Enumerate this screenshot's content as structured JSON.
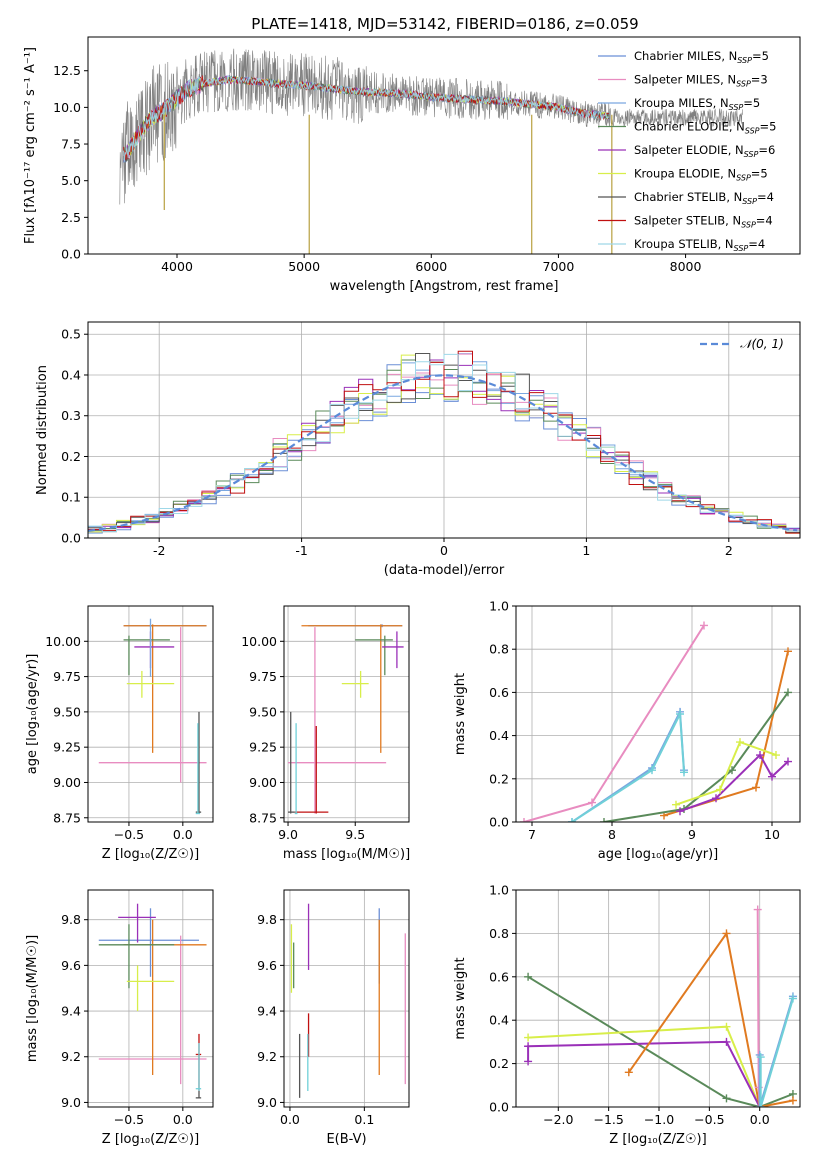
{
  "figure_title": "PLATE=1418, MJD=53142, FIBERID=0186, z=0.059",
  "colors": {
    "Chabrier MILES": "#6b8fd6",
    "Salpeter MILES": "#e88cc0",
    "Kroupa MILES": "#7aa7e0",
    "Chabrier ELODIE": "#5a8a5a",
    "Salpeter ELODIE": "#9a30b8",
    "Kroupa ELODIE": "#d8ee4a",
    "Chabrier STELIB": "#555555",
    "Salpeter STELIB": "#c01010",
    "Kroupa STELIB": "#9fd8e8",
    "data": "#808080",
    "orange": "#e07a20",
    "cyan": "#70d0d8"
  },
  "chart_data": [
    {
      "id": "spectrum",
      "type": "line",
      "title": "PLATE=1418, MJD=53142, FIBERID=0186, z=0.059",
      "xlabel": "wavelength [Angstrom, rest frame]",
      "ylabel": "Flux [f$_\\lambda$10$^{-17}$ erg cm$^{-2}$ s$^{-1}$ A$^{-1}$]",
      "ylabel_display": "Flux [fλ10⁻¹⁷ erg cm⁻² s⁻¹ A⁻¹]",
      "xlim": [
        3300,
        8900
      ],
      "ylim": [
        0,
        14.8
      ],
      "xticks": [
        4000,
        5000,
        6000,
        7000,
        8000
      ],
      "yticks": [
        0.0,
        2.5,
        5.0,
        7.5,
        10.0,
        12.5
      ],
      "grid": false,
      "legend_position": "top-right",
      "legend": [
        {
          "name": "Chabrier MILES",
          "nssp": "5"
        },
        {
          "name": "Salpeter MILES",
          "nssp": "3"
        },
        {
          "name": "Kroupa MILES",
          "nssp": "5"
        },
        {
          "name": "Chabrier ELODIE",
          "nssp": "5"
        },
        {
          "name": "Salpeter ELODIE",
          "nssp": "6"
        },
        {
          "name": "Kroupa ELODIE",
          "nssp": "5"
        },
        {
          "name": "Chabrier STELIB",
          "nssp": "4"
        },
        {
          "name": "Salpeter STELIB",
          "nssp": "4"
        },
        {
          "name": "Kroupa STELIB",
          "nssp": "4"
        }
      ],
      "continuum_model": [
        [
          3600,
          6.8
        ],
        [
          3700,
          8.2
        ],
        [
          3800,
          9.3
        ],
        [
          3900,
          9.8
        ],
        [
          4000,
          10.6
        ],
        [
          4100,
          11.3
        ],
        [
          4200,
          11.6
        ],
        [
          4400,
          11.9
        ],
        [
          4600,
          11.8
        ],
        [
          4800,
          11.6
        ],
        [
          5000,
          11.5
        ],
        [
          5200,
          11.3
        ],
        [
          5400,
          11.1
        ],
        [
          5600,
          11.0
        ],
        [
          5800,
          10.9
        ],
        [
          6000,
          10.7
        ],
        [
          6200,
          10.6
        ],
        [
          6400,
          10.5
        ],
        [
          6600,
          10.4
        ],
        [
          6800,
          10.2
        ],
        [
          7000,
          10.0
        ],
        [
          7200,
          9.6
        ],
        [
          7400,
          9.4
        ]
      ],
      "data_extent": [
        3550,
        8450
      ]
    },
    {
      "id": "residuals",
      "type": "line",
      "xlabel": "(data-model)/error",
      "ylabel": "Normed distribution",
      "xlim": [
        -2.5,
        2.5
      ],
      "ylim": [
        0,
        0.53
      ],
      "xticks": [
        -2,
        -1,
        0,
        1,
        2
      ],
      "yticks": [
        0.0,
        0.1,
        0.2,
        0.3,
        0.4,
        0.5
      ],
      "grid": true,
      "legend_position": "top-right",
      "legend": [
        "$\\mathcal{N}(0,1)$"
      ],
      "legend_display": "𝒩(0, 1)",
      "gaussian": {
        "mean": 0,
        "sigma": 1
      },
      "bin_width": 0.1
    },
    {
      "id": "age_vs_Z",
      "type": "scatter",
      "xlabel": "Z [log$_{10}$($Z/Z_\\odot$)]",
      "xlabel_display": "Z [log₁₀(Z/Z☉)]",
      "ylabel": "age  [log$_{10}$($age/yr$)]",
      "ylabel_display": "age  [log₁₀(age/yr)]",
      "xlim": [
        -0.88,
        0.28
      ],
      "ylim": [
        8.72,
        10.25
      ],
      "xticks": [
        -0.5,
        0.0
      ],
      "yticks": [
        8.75,
        9.0,
        9.25,
        9.5,
        9.75,
        10.0
      ],
      "grid": true,
      "points": [
        {
          "c": "Chabrier MILES",
          "x": -0.3,
          "y": 10.11,
          "xe": [
            -0.55,
            0.22
          ],
          "ye": [
            10.1,
            10.12
          ]
        },
        {
          "c": "Salpeter MILES",
          "x": -0.02,
          "y": 9.14,
          "xe": [
            -0.78,
            0.22
          ],
          "ye": [
            9.0,
            10.1
          ]
        },
        {
          "c": "orange",
          "x": -0.28,
          "y": 10.11,
          "xe": [
            -0.55,
            0.22
          ],
          "ye": [
            9.21,
            10.12
          ]
        },
        {
          "c": "Chabrier ELODIE",
          "x": -0.5,
          "y": 10.01,
          "xe": [
            -0.55,
            -0.12
          ],
          "ye": [
            9.76,
            10.04
          ]
        },
        {
          "c": "Salpeter ELODIE",
          "x": -0.3,
          "y": 9.96,
          "xe": [
            -0.45,
            -0.08
          ],
          "ye": [
            9.81,
            10.07
          ]
        },
        {
          "c": "Kroupa ELODIE",
          "x": -0.38,
          "y": 9.7,
          "xe": [
            -0.52,
            -0.08
          ],
          "ye": [
            9.6,
            9.79
          ]
        },
        {
          "c": "Kroupa MILES",
          "x": -0.3,
          "y": 10.0,
          "xe": [
            -0.3,
            -0.3
          ],
          "ye": [
            9.75,
            10.16
          ]
        },
        {
          "c": "Chabrier STELIB",
          "x": 0.15,
          "y": 8.79,
          "xe": [
            0.12,
            0.17
          ],
          "ye": [
            8.78,
            9.5
          ]
        },
        {
          "c": "cyan",
          "x": 0.14,
          "y": 8.78,
          "xe": [
            0.12,
            0.16
          ],
          "ye": [
            8.78,
            9.42
          ]
        }
      ]
    },
    {
      "id": "age_vs_mass",
      "type": "scatter",
      "xlabel": "mass [log$_{10}$($M/M_\\odot$)]",
      "xlabel_display": "mass [log₁₀(M/M☉)]",
      "ylabel": "",
      "xlim": [
        8.97,
        9.9
      ],
      "ylim": [
        8.72,
        10.25
      ],
      "xticks": [
        9.0,
        9.5
      ],
      "yticks": [
        8.75,
        9.0,
        9.25,
        9.5,
        9.75,
        10.0
      ],
      "grid": true,
      "points": [
        {
          "c": "Chabrier MILES",
          "x": 9.7,
          "y": 10.11,
          "xe": [
            9.15,
            9.85
          ],
          "ye": [
            10.1,
            10.12
          ]
        },
        {
          "c": "Salpeter MILES",
          "x": 9.2,
          "y": 9.14,
          "xe": [
            9.0,
            9.73
          ],
          "ye": [
            8.78,
            10.1
          ]
        },
        {
          "c": "orange",
          "x": 9.69,
          "y": 10.11,
          "xe": [
            9.1,
            9.85
          ],
          "ye": [
            9.21,
            10.12
          ]
        },
        {
          "c": "Chabrier ELODIE",
          "x": 9.72,
          "y": 10.01,
          "xe": [
            9.5,
            9.78
          ],
          "ye": [
            9.76,
            10.04
          ]
        },
        {
          "c": "Salpeter ELODIE",
          "x": 9.81,
          "y": 9.96,
          "xe": [
            9.7,
            9.86
          ],
          "ye": [
            9.81,
            10.07
          ]
        },
        {
          "c": "Kroupa ELODIE",
          "x": 9.54,
          "y": 9.7,
          "xe": [
            9.4,
            9.6
          ],
          "ye": [
            9.6,
            9.79
          ]
        },
        {
          "c": "Chabrier STELIB",
          "x": 9.02,
          "y": 8.79,
          "xe": [
            9.0,
            9.05
          ],
          "ye": [
            8.78,
            9.5
          ]
        },
        {
          "c": "Salpeter STELIB",
          "x": 9.21,
          "y": 8.79,
          "xe": [
            9.05,
            9.3
          ],
          "ye": [
            8.78,
            9.4
          ]
        },
        {
          "c": "cyan",
          "x": 9.06,
          "y": 8.78,
          "xe": [
            9.05,
            9.07
          ],
          "ye": [
            8.78,
            9.42
          ]
        }
      ]
    },
    {
      "id": "weight_vs_age",
      "type": "line",
      "xlabel": "age  [log$_{10}$($age/yr$)]",
      "xlabel_display": "age  [log₁₀(age/yr)]",
      "ylabel": "mass weight",
      "xlim": [
        6.8,
        10.35
      ],
      "ylim": [
        0,
        1.0
      ],
      "xticks": [
        7,
        8,
        9,
        10
      ],
      "yticks": [
        0.0,
        0.2,
        0.4,
        0.6,
        0.8,
        1.0
      ],
      "grid": true,
      "series": [
        {
          "c": "Salpeter MILES",
          "x": [
            6.9,
            7.75,
            9.15
          ],
          "y": [
            0.0,
            0.09,
            0.91
          ]
        },
        {
          "c": "Kroupa MILES",
          "x": [
            7.5,
            8.5,
            8.85,
            8.9
          ],
          "y": [
            0.0,
            0.25,
            0.51,
            0.24
          ]
        },
        {
          "c": "cyan",
          "x": [
            7.5,
            8.5,
            8.85,
            8.9
          ],
          "y": [
            0.0,
            0.24,
            0.5,
            0.23
          ]
        },
        {
          "c": "orange",
          "x": [
            8.65,
            9.8,
            10.2
          ],
          "y": [
            0.03,
            0.16,
            0.79
          ]
        },
        {
          "c": "Chabrier ELODIE",
          "x": [
            7.9,
            8.9,
            9.5,
            10.2
          ],
          "y": [
            0.0,
            0.06,
            0.24,
            0.6
          ]
        },
        {
          "c": "Salpeter ELODIE",
          "x": [
            8.85,
            9.3,
            9.85,
            10.0,
            10.2
          ],
          "y": [
            0.05,
            0.11,
            0.31,
            0.21,
            0.28
          ]
        },
        {
          "c": "Kroupa ELODIE",
          "x": [
            8.8,
            9.35,
            9.6,
            10.05
          ],
          "y": [
            0.08,
            0.15,
            0.37,
            0.31
          ]
        }
      ]
    },
    {
      "id": "mass_vs_Z",
      "type": "scatter",
      "xlabel": "Z [log$_{10}$($Z/Z_\\odot$)]",
      "xlabel_display": "Z [log₁₀(Z/Z☉)]",
      "ylabel": "mass [log$_{10}$($M/M_\\odot$)]",
      "ylabel_display": "mass [log₁₀(M/M☉)]",
      "xlim": [
        -0.88,
        0.28
      ],
      "ylim": [
        8.98,
        9.93
      ],
      "xticks": [
        -0.5,
        0.0
      ],
      "yticks": [
        9.0,
        9.2,
        9.4,
        9.6,
        9.8
      ],
      "grid": true,
      "points": [
        {
          "c": "Chabrier MILES",
          "x": -0.3,
          "y": 9.71,
          "xe": [
            -0.78,
            0.15
          ],
          "ye": [
            9.55,
            9.85
          ]
        },
        {
          "c": "Salpeter MILES",
          "x": -0.02,
          "y": 9.19,
          "xe": [
            -0.78,
            0.22
          ],
          "ye": [
            9.08,
            9.73
          ]
        },
        {
          "c": "orange",
          "x": -0.28,
          "y": 9.69,
          "xe": [
            -0.55,
            0.22
          ],
          "ye": [
            9.12,
            9.8
          ]
        },
        {
          "c": "Chabrier ELODIE",
          "x": -0.5,
          "y": 9.69,
          "xe": [
            -0.78,
            -0.08
          ],
          "ye": [
            9.5,
            9.78
          ]
        },
        {
          "c": "Salpeter ELODIE",
          "x": -0.42,
          "y": 9.81,
          "xe": [
            -0.6,
            -0.25
          ],
          "ye": [
            9.7,
            9.87
          ]
        },
        {
          "c": "Kroupa ELODIE",
          "x": -0.42,
          "y": 9.53,
          "xe": [
            -0.52,
            -0.08
          ],
          "ye": [
            9.4,
            9.6
          ]
        },
        {
          "c": "Chabrier STELIB",
          "x": 0.15,
          "y": 9.02,
          "xe": [
            0.12,
            0.17
          ],
          "ye": [
            9.02,
            9.05
          ]
        },
        {
          "c": "Salpeter STELIB",
          "x": 0.15,
          "y": 9.21,
          "xe": [
            0.12,
            0.17
          ],
          "ye": [
            9.05,
            9.3
          ]
        },
        {
          "c": "cyan",
          "x": 0.15,
          "y": 9.06,
          "xe": [
            0.12,
            0.17
          ],
          "ye": [
            9.05,
            9.26
          ]
        }
      ]
    },
    {
      "id": "mass_vs_EBV",
      "type": "scatter",
      "xlabel": "E(B-V)",
      "ylabel": "",
      "xlim": [
        -0.008,
        0.16
      ],
      "ylim": [
        8.98,
        9.93
      ],
      "xticks": [
        0.0,
        0.1
      ],
      "yticks": [
        9.0,
        9.2,
        9.4,
        9.6,
        9.8
      ],
      "grid": true,
      "segments": [
        {
          "c": "Chabrier MILES",
          "x": 0.12,
          "y": [
            9.52,
            9.85
          ]
        },
        {
          "c": "orange",
          "x": 0.12,
          "y": [
            9.12,
            9.8
          ]
        },
        {
          "c": "Salpeter MILES",
          "x": 0.155,
          "y": [
            9.08,
            9.74
          ]
        },
        {
          "c": "Kroupa ELODIE",
          "x": 0.002,
          "y": [
            9.48,
            9.78
          ]
        },
        {
          "c": "Chabrier ELODIE",
          "x": 0.005,
          "y": [
            9.5,
            9.7
          ]
        },
        {
          "c": "Salpeter ELODIE",
          "x": 0.025,
          "y": [
            9.58,
            9.87
          ]
        },
        {
          "c": "Chabrier STELIB",
          "x": 0.013,
          "y": [
            9.02,
            9.3
          ]
        },
        {
          "c": "Salpeter STELIB",
          "x": 0.025,
          "y": [
            9.2,
            9.39
          ]
        },
        {
          "c": "cyan",
          "x": 0.024,
          "y": [
            9.05,
            9.3
          ]
        }
      ]
    },
    {
      "id": "weight_vs_Z",
      "type": "line",
      "xlabel": "Z [log$_{10}$($Z/Z_\\odot$)]",
      "xlabel_display": "Z [log₁₀(Z/Z☉)]",
      "ylabel": "mass weight",
      "xlim": [
        -2.42,
        0.4
      ],
      "ylim": [
        0,
        1.0
      ],
      "xticks": [
        -2.0,
        -1.5,
        -1.0,
        -0.5,
        0.0
      ],
      "yticks": [
        0.0,
        0.2,
        0.4,
        0.6,
        0.8,
        1.0
      ],
      "grid": true,
      "series": [
        {
          "c": "Chabrier ELODIE",
          "x": [
            -2.3,
            -0.33,
            0.0,
            0.33
          ],
          "y": [
            0.6,
            0.04,
            0.0,
            0.06
          ]
        },
        {
          "c": "Kroupa ELODIE",
          "x": [
            -2.3,
            -0.33,
            0.0
          ],
          "y": [
            0.32,
            0.37,
            0.0
          ]
        },
        {
          "c": "Salpeter ELODIE",
          "x": [
            -2.3,
            -2.3,
            -0.33,
            0.0
          ],
          "y": [
            0.21,
            0.28,
            0.3,
            0.0
          ]
        },
        {
          "c": "orange",
          "x": [
            -1.3,
            -0.33,
            0.0,
            0.33
          ],
          "y": [
            0.16,
            0.8,
            0.0,
            0.03
          ]
        },
        {
          "c": "Salpeter MILES",
          "x": [
            -0.02,
            -0.01,
            0.0
          ],
          "y": [
            0.91,
            0.09,
            0.0
          ]
        },
        {
          "c": "Kroupa MILES",
          "x": [
            0.0,
            0.0,
            0.33
          ],
          "y": [
            0.24,
            0.0,
            0.51
          ]
        },
        {
          "c": "cyan",
          "x": [
            0.01,
            0.01,
            0.33
          ],
          "y": [
            0.23,
            0.0,
            0.5
          ]
        }
      ]
    }
  ]
}
